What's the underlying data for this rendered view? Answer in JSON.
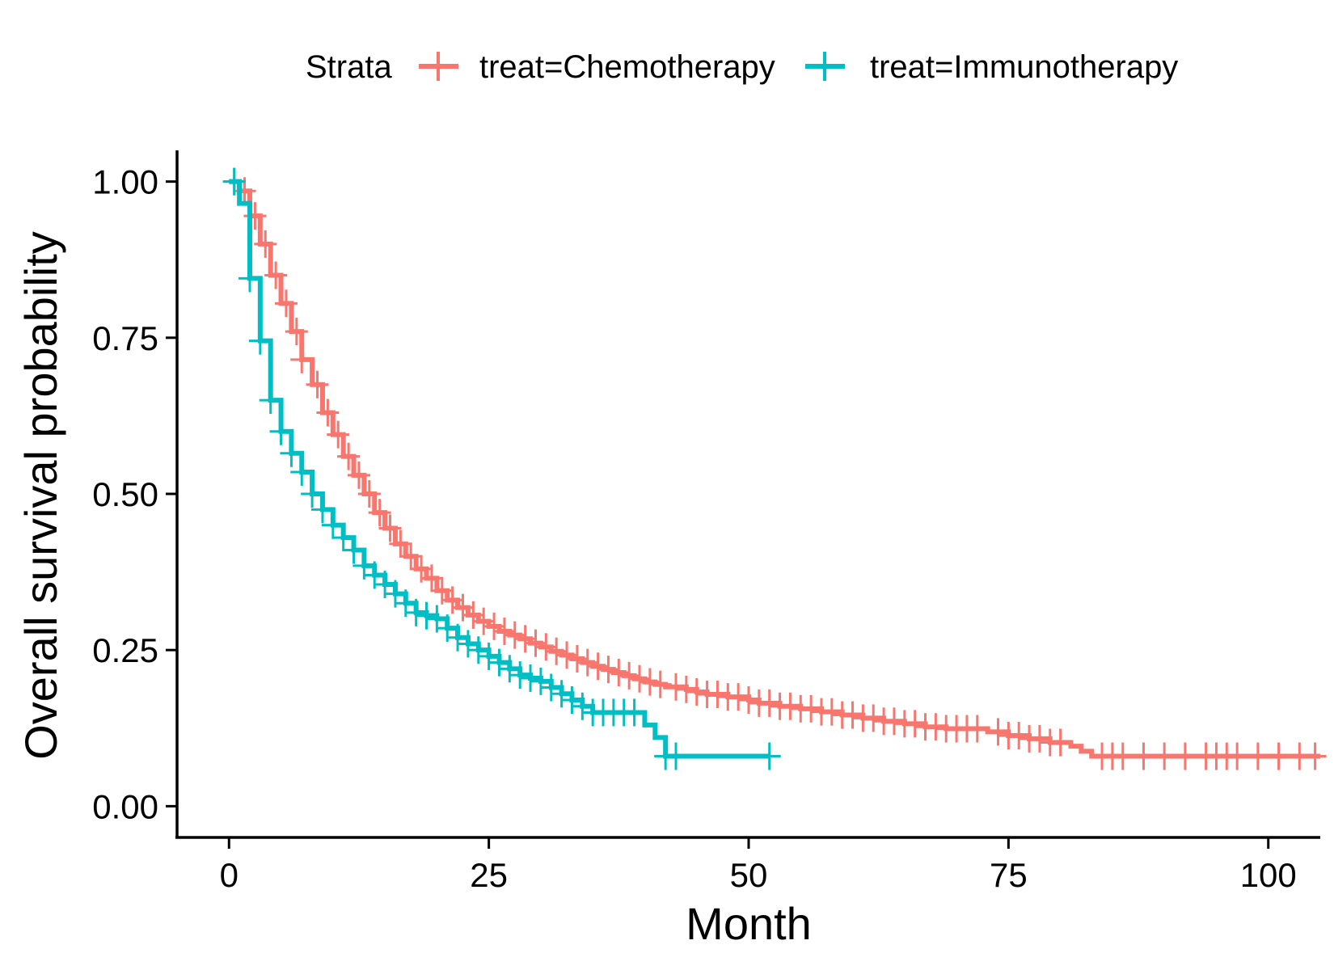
{
  "chart_data": {
    "type": "line",
    "subtype": "kaplan-meier step",
    "title": "",
    "xlabel": "Month",
    "ylabel": "Overall survival probability",
    "xlim": [
      -5,
      105
    ],
    "ylim": [
      -0.05,
      1.05
    ],
    "xticks": [
      0,
      25,
      50,
      75,
      100
    ],
    "xtick_labels": [
      "0",
      "25",
      "50",
      "75",
      "100"
    ],
    "yticks": [
      0,
      0.25,
      0.5,
      0.75,
      1
    ],
    "ytick_labels": [
      "0.00",
      "0.25",
      "0.50",
      "0.75",
      "1.00"
    ],
    "grid": false,
    "legend": {
      "title": "Strata",
      "position": "top"
    },
    "series": [
      {
        "name": "treat=Chemotherapy",
        "color": "#F8766D",
        "steps": [
          [
            0,
            1.0
          ],
          [
            1,
            0.985
          ],
          [
            2,
            0.945
          ],
          [
            3,
            0.9
          ],
          [
            4,
            0.85
          ],
          [
            5,
            0.805
          ],
          [
            6,
            0.76
          ],
          [
            7,
            0.715
          ],
          [
            8,
            0.675
          ],
          [
            9,
            0.63
          ],
          [
            10,
            0.595
          ],
          [
            11,
            0.56
          ],
          [
            12,
            0.53
          ],
          [
            13,
            0.5
          ],
          [
            14,
            0.47
          ],
          [
            15,
            0.445
          ],
          [
            16,
            0.42
          ],
          [
            17,
            0.4
          ],
          [
            18,
            0.38
          ],
          [
            19,
            0.365
          ],
          [
            20,
            0.345
          ],
          [
            21,
            0.33
          ],
          [
            22,
            0.318
          ],
          [
            23,
            0.306
          ],
          [
            24,
            0.296
          ],
          [
            25,
            0.288
          ],
          [
            26,
            0.28
          ],
          [
            27,
            0.274
          ],
          [
            28,
            0.268
          ],
          [
            29,
            0.261
          ],
          [
            30,
            0.255
          ],
          [
            31,
            0.248
          ],
          [
            32,
            0.242
          ],
          [
            33,
            0.236
          ],
          [
            34,
            0.23
          ],
          [
            35,
            0.224
          ],
          [
            36,
            0.219
          ],
          [
            37,
            0.214
          ],
          [
            38,
            0.209
          ],
          [
            39,
            0.204
          ],
          [
            40,
            0.199
          ],
          [
            41,
            0.195
          ],
          [
            42,
            0.191
          ],
          [
            44,
            0.187
          ],
          [
            45,
            0.183
          ],
          [
            46,
            0.179
          ],
          [
            48,
            0.175
          ],
          [
            50,
            0.17
          ],
          [
            51,
            0.165
          ],
          [
            53,
            0.16
          ],
          [
            55,
            0.156
          ],
          [
            57,
            0.151
          ],
          [
            59,
            0.146
          ],
          [
            61,
            0.141
          ],
          [
            63,
            0.136
          ],
          [
            65,
            0.132
          ],
          [
            67,
            0.127
          ],
          [
            69,
            0.124
          ],
          [
            72,
            0.124
          ],
          [
            73,
            0.119
          ],
          [
            75,
            0.113
          ],
          [
            77,
            0.108
          ],
          [
            79,
            0.102
          ],
          [
            81,
            0.096
          ],
          [
            82,
            0.088
          ],
          [
            83,
            0.08
          ],
          [
            105,
            0.08
          ]
        ],
        "censor_times": [
          0.5,
          1.5,
          2.5,
          3.5,
          4.5,
          5.5,
          6.5,
          7,
          8.5,
          9.5,
          10.5,
          11.5,
          12.5,
          13.5,
          14.5,
          15.5,
          16.5,
          17.5,
          18.5,
          19.5,
          20.5,
          21.5,
          22.5,
          23.5,
          24.5,
          25.5,
          26.5,
          27.5,
          28.5,
          29.5,
          30.5,
          31.5,
          32.5,
          33.5,
          34.5,
          35.5,
          36.5,
          37.5,
          38.5,
          39.5,
          40.5,
          41.5,
          43,
          44,
          45,
          46,
          47,
          48,
          49,
          50,
          51,
          52,
          53,
          54,
          55,
          56,
          57,
          58,
          59,
          60,
          61,
          62,
          63,
          64,
          65,
          66,
          67,
          68,
          69,
          70,
          71,
          72,
          74,
          75,
          76,
          77,
          78,
          79,
          80,
          84,
          85,
          86,
          88,
          90,
          92,
          94,
          95,
          96,
          97,
          99,
          101,
          103,
          104.5
        ]
      },
      {
        "name": "treat=Immunotherapy",
        "color": "#00BFC4",
        "steps": [
          [
            0,
            1.0
          ],
          [
            1,
            0.965
          ],
          [
            2,
            0.845
          ],
          [
            3,
            0.745
          ],
          [
            4,
            0.65
          ],
          [
            5,
            0.6
          ],
          [
            6,
            0.565
          ],
          [
            7,
            0.535
          ],
          [
            8,
            0.5
          ],
          [
            9,
            0.475
          ],
          [
            10,
            0.45
          ],
          [
            11,
            0.43
          ],
          [
            12,
            0.41
          ],
          [
            13,
            0.385
          ],
          [
            14,
            0.37
          ],
          [
            15,
            0.355
          ],
          [
            16,
            0.34
          ],
          [
            17,
            0.325
          ],
          [
            18,
            0.31
          ],
          [
            19,
            0.305
          ],
          [
            20,
            0.3
          ],
          [
            21,
            0.285
          ],
          [
            22,
            0.27
          ],
          [
            23,
            0.26
          ],
          [
            24,
            0.25
          ],
          [
            25,
            0.24
          ],
          [
            26,
            0.23
          ],
          [
            27,
            0.22
          ],
          [
            28,
            0.21
          ],
          [
            29,
            0.205
          ],
          [
            30,
            0.2
          ],
          [
            31,
            0.19
          ],
          [
            32,
            0.18
          ],
          [
            33,
            0.17
          ],
          [
            34,
            0.16
          ],
          [
            35,
            0.15
          ],
          [
            39,
            0.15
          ],
          [
            40,
            0.13
          ],
          [
            41,
            0.11
          ],
          [
            42,
            0.08
          ],
          [
            52,
            0.08
          ]
        ],
        "censor_times": [
          0.5,
          2,
          3,
          4,
          5,
          6,
          7,
          8,
          9,
          10,
          11,
          12,
          13,
          14,
          15,
          16,
          17,
          18,
          19,
          20,
          21,
          22,
          23,
          24,
          25,
          26,
          27,
          28,
          29,
          30,
          31,
          32,
          33,
          34,
          35,
          36,
          37,
          38,
          39,
          42,
          43,
          52
        ]
      }
    ]
  }
}
